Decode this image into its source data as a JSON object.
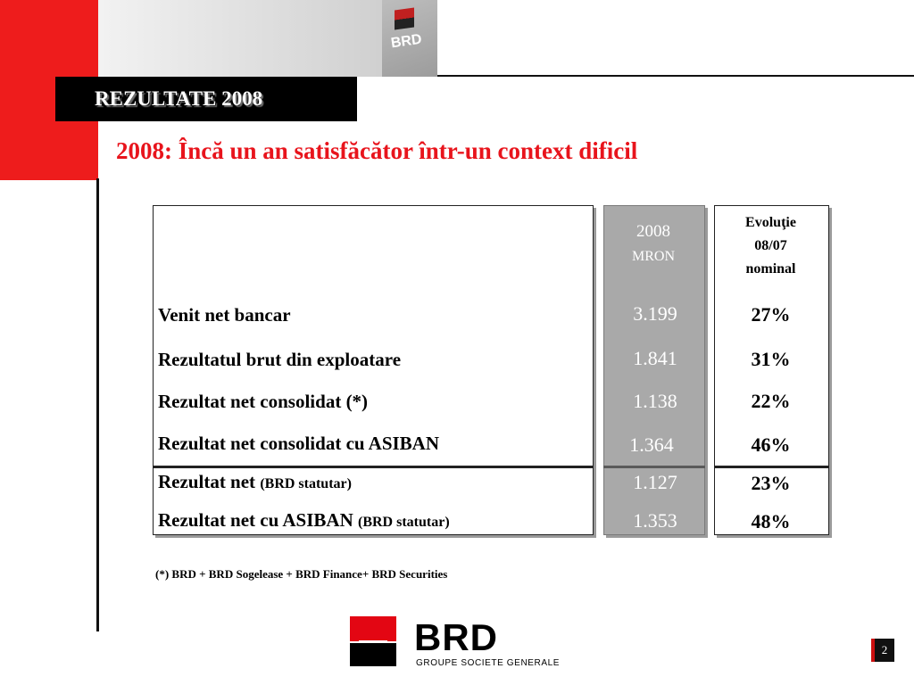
{
  "header": {
    "title": "REZULTATE 2008",
    "subtitle": "2008: Încă un an satisfăcător într-un context dificil",
    "photo_logo_text": "BRD"
  },
  "table": {
    "col_value_header_line1": "2008",
    "col_value_header_line2": "MRON",
    "col_evol_header_line1": "Evoluţie",
    "col_evol_header_line2": "08/07",
    "col_evol_header_line3": "nominal",
    "rows": [
      {
        "label": "Venit net bancar",
        "label_suffix": "",
        "value": "3.199",
        "evolution": "27%"
      },
      {
        "label": "Rezultatul brut din exploatare",
        "label_suffix": "",
        "value": "1.841",
        "evolution": "31%"
      },
      {
        "label": "Rezultat net consolidat (*)",
        "label_suffix": "",
        "value": "1.138",
        "evolution": "22%"
      },
      {
        "label": "Rezultat net consolidat cu ASIBAN",
        "label_suffix": "",
        "value": "1.364",
        "evolution": "46%"
      },
      {
        "label": "Rezultat net",
        "label_suffix": "(BRD statutar)",
        "value": "1.127",
        "evolution": "23%"
      },
      {
        "label": "Rezultat net cu ASIBAN",
        "label_suffix": "(BRD statutar)",
        "value": "1.353",
        "evolution": "48%"
      }
    ]
  },
  "footnote": "(*) BRD + BRD Sogelease + BRD Finance+ BRD Securities",
  "logo": {
    "word": "BRD",
    "tagline": "GROUPE SOCIETE GENERALE"
  },
  "page_number": "2",
  "colors": {
    "brand_red": "#e30613",
    "subtitle_red": "#e8141c",
    "value_column_gray": "#a9a9a9"
  }
}
